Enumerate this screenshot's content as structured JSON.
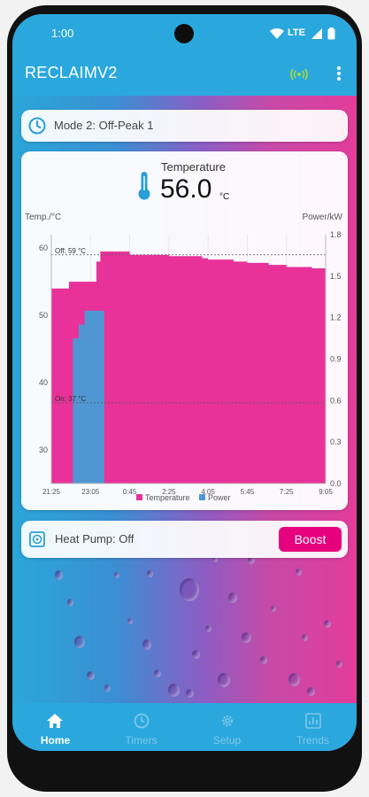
{
  "status_bar": {
    "time": "1:00",
    "network": "LTE"
  },
  "app_bar": {
    "title": "RECLAIMV2",
    "connection_icon": "wifi-signal-icon",
    "menu_icon": "more-vert-icon",
    "accent": "#a6d93a"
  },
  "mode": {
    "label": "Mode 2: Off-Peak 1",
    "icon": "clock-icon"
  },
  "temperature": {
    "label": "Temperature",
    "value": "56.0",
    "unit": "°C",
    "icon": "thermometer-icon"
  },
  "chart_data": {
    "type": "area",
    "ylabel_left": "Temp./°C",
    "ylabel_right": "Power/kW",
    "ylim_left": [
      25,
      62
    ],
    "ylim_right": [
      0,
      1.8
    ],
    "yticks_left": [
      "60",
      "50",
      "40",
      "30"
    ],
    "yticks_right": [
      "1.8",
      "1.5",
      "1.2",
      "0.9",
      "0.6",
      "0.3",
      "0.0"
    ],
    "xticks": [
      "21:25",
      "23:05",
      "0:45",
      "2:25",
      "4:05",
      "5:45",
      "7:25",
      "9:05"
    ],
    "threshold_off": {
      "label": "Off: 59 °C",
      "value": 59
    },
    "threshold_on": {
      "label": "On: 37 °C",
      "value": 37
    },
    "series": [
      {
        "name": "Temperature",
        "color": "#e8329a",
        "x": [
          "21:25",
          "22:00",
          "22:10",
          "22:30",
          "23:05",
          "23:20",
          "23:30",
          "0:20",
          "0:45",
          "1:40",
          "2:25",
          "3:50",
          "4:05",
          "5:10",
          "5:45",
          "6:40",
          "7:25",
          "8:30",
          "9:05"
        ],
        "values": [
          54,
          54,
          55,
          55,
          55,
          58,
          59.5,
          59.5,
          59,
          59,
          58.8,
          58.5,
          58.3,
          58,
          57.8,
          57.5,
          57.2,
          57,
          56.8
        ]
      },
      {
        "name": "Power",
        "color": "#4f97d3",
        "x": [
          "21:25",
          "22:15",
          "22:20",
          "22:30",
          "22:35",
          "22:45",
          "22:50",
          "23:35",
          "23:40"
        ],
        "values": [
          0,
          0,
          1.05,
          1.05,
          1.15,
          1.15,
          1.25,
          1.25,
          0
        ]
      }
    ],
    "legend": "bottom"
  },
  "heat_pump": {
    "label": "Heat Pump: Off",
    "boost_label": "Boost",
    "icon": "heat-pump-icon",
    "boost_color": "#e6007e"
  },
  "nav": [
    {
      "label": "Home",
      "icon": "home-icon",
      "active": true
    },
    {
      "label": "Timers",
      "icon": "timer-icon",
      "active": false
    },
    {
      "label": "Setup",
      "icon": "settings-icon",
      "active": false
    },
    {
      "label": "Trends",
      "icon": "chart-icon",
      "active": false
    }
  ]
}
